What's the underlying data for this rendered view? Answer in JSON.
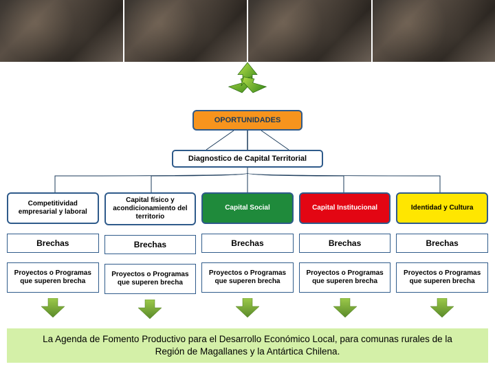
{
  "top_box": {
    "label": "OPORTUNIDADES",
    "bg": "#f7941d",
    "border": "#2e5a8a",
    "text_color": "#1a3a5a"
  },
  "diag_box": {
    "label": "Diagnostico de Capital Territorial",
    "bg": "#ffffff",
    "border": "#2e5a8a"
  },
  "columns": [
    {
      "pill": "Competitividad empresarial y laboral",
      "pill_bg": "#ffffff",
      "pill_text": "#000000",
      "brechas": "Brechas",
      "proj": "Proyectos o Programas que superen brecha"
    },
    {
      "pill": "Capital físico y acondicionamiento del territorio",
      "pill_bg": "#ffffff",
      "pill_text": "#000000",
      "brechas": "Brechas",
      "proj": "Proyectos o Programas que superen brecha"
    },
    {
      "pill": "Capital Social",
      "pill_bg": "#1f8a3b",
      "pill_text": "#ffffff",
      "brechas": "Brechas",
      "proj": "Proyectos o Programas que superen brecha"
    },
    {
      "pill": "Capital Institucional",
      "pill_bg": "#e30613",
      "pill_text": "#ffffff",
      "brechas": "Brechas",
      "proj": "Proyectos o Programas que superen brecha"
    },
    {
      "pill": "Identidad y Cultura",
      "pill_bg": "#ffe600",
      "pill_text": "#000000",
      "brechas": "Brechas",
      "proj": "Proyectos o Programas que superen brecha"
    }
  ],
  "footer": {
    "text": "La Agenda de Fomento Productivo para el Desarrollo Económico Local, para comunas rurales de la Región de Magallanes y la Antártica Chilena.",
    "bg": "#d4f0a8"
  },
  "arrow_gradient": {
    "light": "#b8e04a",
    "dark": "#3a8a1a"
  },
  "down_arrow_colors": {
    "light": "#9cc94a",
    "dark": "#5a8a2a"
  },
  "connector_color": "#1a3a5a"
}
